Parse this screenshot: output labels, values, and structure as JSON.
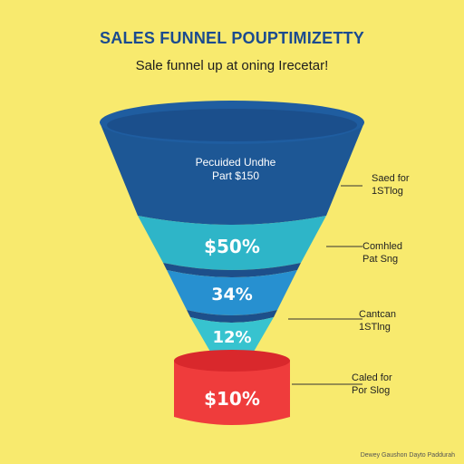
{
  "header": {
    "title": "SALES FUNNEL POUPTIMIZETTY",
    "subtitle": "Sale funnel up at oning Irecetar!"
  },
  "funnel": {
    "top_label_line1": "Pecuided Undhe",
    "top_label_line2": "Part $150",
    "stages": [
      {
        "value": "$50%",
        "color": "#2eb5c8",
        "note_line1": "Comhled",
        "note_line2": "Pat Sng"
      },
      {
        "value": "34%",
        "color": "#2790d0",
        "note_line1": "Cantcan",
        "note_line2": "1STlng"
      },
      {
        "value": "12%",
        "color": "#37c3cf",
        "note_line1": "",
        "note_line2": ""
      },
      {
        "value": "$10%",
        "color": "#ef3c3c",
        "note_line1": "Caled for",
        "note_line2": "Por Slog"
      }
    ],
    "top_note_line1": "Saed for",
    "top_note_line2": "1STlog",
    "top_color": "#1d5795"
  },
  "footer": {
    "credit": "Dewey Gaushon Dayto Paddurah"
  }
}
